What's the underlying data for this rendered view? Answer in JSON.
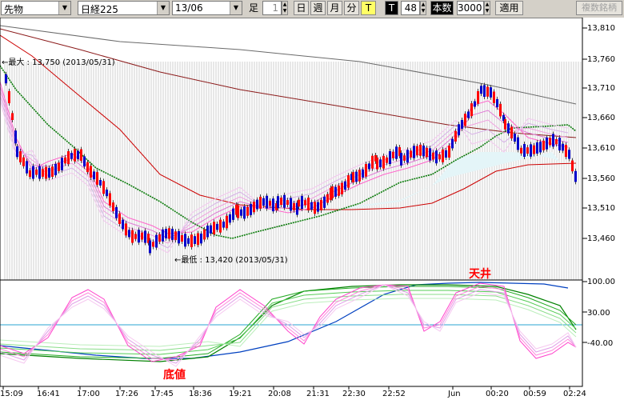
{
  "toolbar": {
    "instrument": "先物",
    "index": "日経225",
    "contract": "13/06",
    "period_label": "足",
    "period_value": "1",
    "period_buttons": [
      "日",
      "週",
      "月",
      "分",
      "T"
    ],
    "tick_label": "T",
    "tick_value": "48",
    "count_label": "本数",
    "count_value": "3000",
    "apply_button": "適用",
    "multi_display_button": "複数銘柄"
  },
  "chart_annotations": {
    "max_label": "←最大 : 13,750 (2013/05/31)",
    "min_label": "←最低 : 13,420 (2013/05/31)",
    "top_label": "天井",
    "bottom_label": "底値"
  },
  "colors": {
    "up_candle": "#ff0000",
    "down_candle": "#0000cc",
    "top_label": "#ff0000",
    "bottom_label": "#ff0000",
    "ma_dotted": "#0a7a0a",
    "ma_long1": "#6a6a6a",
    "ma_long2": "#8b1a1a",
    "ma_red": "#cc0000"
  },
  "chart_data": {
    "type": "line",
    "x_labels": [
      "15:09",
      "16:41",
      "17:00",
      "17:26",
      "17:45",
      "18:36",
      "19:21",
      "20:08",
      "21:31",
      "22:30",
      "22:52",
      "Jun",
      "00:20",
      "00:59",
      "02:24"
    ],
    "price_axis_ticks": [
      "13,810",
      "13,760",
      "13,710",
      "13,660",
      "13,610",
      "13,560",
      "13,510",
      "13,460"
    ],
    "oscillator_axis_ticks": [
      "100.00",
      "30.00",
      "-40.00"
    ],
    "price_range": [
      13420,
      13810
    ],
    "oscillator_range": [
      -100,
      100
    ],
    "grid": true
  }
}
